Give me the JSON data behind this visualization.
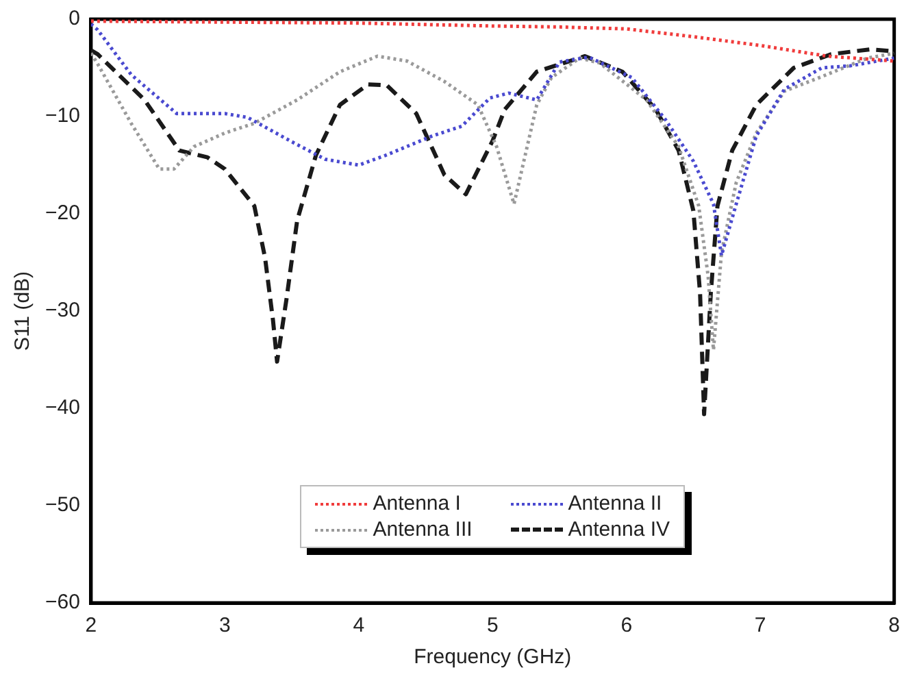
{
  "chart_data": {
    "type": "line",
    "xlabel": "Frequency (GHz)",
    "ylabel": "S11 (dB)",
    "xlim": [
      2,
      8
    ],
    "xticks": [
      2,
      3,
      4,
      5,
      6,
      7,
      8
    ],
    "ylim": [
      -60,
      0
    ],
    "yticks": [
      -60,
      -50,
      -40,
      -30,
      -20,
      -10,
      0
    ],
    "grid": false,
    "legend": "bottom",
    "marker": "none",
    "series": [
      {
        "name": "Antenna I",
        "color": "#f03c3c",
        "line_style": "dotted",
        "x": [
          2,
          3,
          4,
          5,
          5.5,
          6,
          6.5,
          7,
          7.5,
          8
        ],
        "values": [
          -0.2,
          -0.3,
          -0.4,
          -0.7,
          -0.8,
          -1,
          -1.8,
          -2.7,
          -3.8,
          -4.3
        ]
      },
      {
        "name": "Antenna II",
        "color": "#4a4ad0",
        "line_style": "dotted",
        "x": [
          2,
          2.05,
          2.3,
          2.64,
          3,
          3.17,
          3.5,
          3.75,
          4,
          4.2,
          4.55,
          4.77,
          4.98,
          5.12,
          5.33,
          5.5,
          5.72,
          6.04,
          6.29,
          6.5,
          6.65,
          6.71,
          6.82,
          6.97,
          7.18,
          7.46,
          7.67,
          8
        ],
        "values": [
          -0.5,
          -1.1,
          -5.7,
          -9.7,
          -9.7,
          -10.1,
          -12.6,
          -14.4,
          -15,
          -14,
          -12,
          -11,
          -8.1,
          -7.6,
          -8.3,
          -4.4,
          -3.9,
          -6,
          -10.3,
          -14.6,
          -19,
          -24.3,
          -19,
          -12,
          -7.2,
          -5,
          -4.8,
          -4
        ]
      },
      {
        "name": "Antenna III",
        "color": "#9a9a9a",
        "line_style": "dotted",
        "x": [
          2,
          2.05,
          2.3,
          2.51,
          2.62,
          2.77,
          3,
          3.22,
          3.54,
          3.86,
          4.14,
          4.36,
          4.64,
          4.89,
          5.03,
          5.16,
          5.33,
          5.44,
          5.65,
          5.8,
          6.15,
          6.39,
          6.54,
          6.61,
          6.65,
          6.71,
          6.82,
          6.97,
          7.18,
          7.46,
          7.8,
          8
        ],
        "values": [
          -3.5,
          -4.6,
          -10.7,
          -15.4,
          -15.4,
          -13.1,
          -11.7,
          -10.7,
          -8.3,
          -5.4,
          -3.8,
          -4.3,
          -6.4,
          -8.8,
          -13.1,
          -19,
          -8.8,
          -6,
          -4,
          -4.5,
          -8.3,
          -13.1,
          -19.2,
          -26.4,
          -34,
          -24,
          -16.8,
          -11.7,
          -7.4,
          -5.9,
          -4,
          -3.5
        ]
      },
      {
        "name": "Antenna IV",
        "color": "#1a1a1a",
        "line_style": "dashed",
        "x": [
          2,
          2.05,
          2.4,
          2.66,
          2.87,
          3,
          3.22,
          3.3,
          3.36,
          3.39,
          3.46,
          3.54,
          3.68,
          3.86,
          4.07,
          4.21,
          4.43,
          4.64,
          4.8,
          5,
          5.09,
          5.33,
          5.69,
          5.97,
          6.22,
          6.39,
          6.5,
          6.55,
          6.58,
          6.63,
          6.68,
          6.79,
          6.97,
          7.25,
          7.53,
          7.82,
          8
        ],
        "values": [
          -3.2,
          -3.6,
          -8.3,
          -13.5,
          -14.2,
          -15.4,
          -19.2,
          -24.5,
          -31,
          -35.2,
          -28.8,
          -20.7,
          -14,
          -8.8,
          -6.7,
          -6.8,
          -9.7,
          -16,
          -18,
          -12.5,
          -9.3,
          -5.4,
          -3.8,
          -5.4,
          -9.3,
          -13.5,
          -19.7,
          -28.2,
          -40.6,
          -28.2,
          -19.2,
          -13.5,
          -8.8,
          -5,
          -3.6,
          -3.1,
          -3.3
        ]
      }
    ]
  }
}
